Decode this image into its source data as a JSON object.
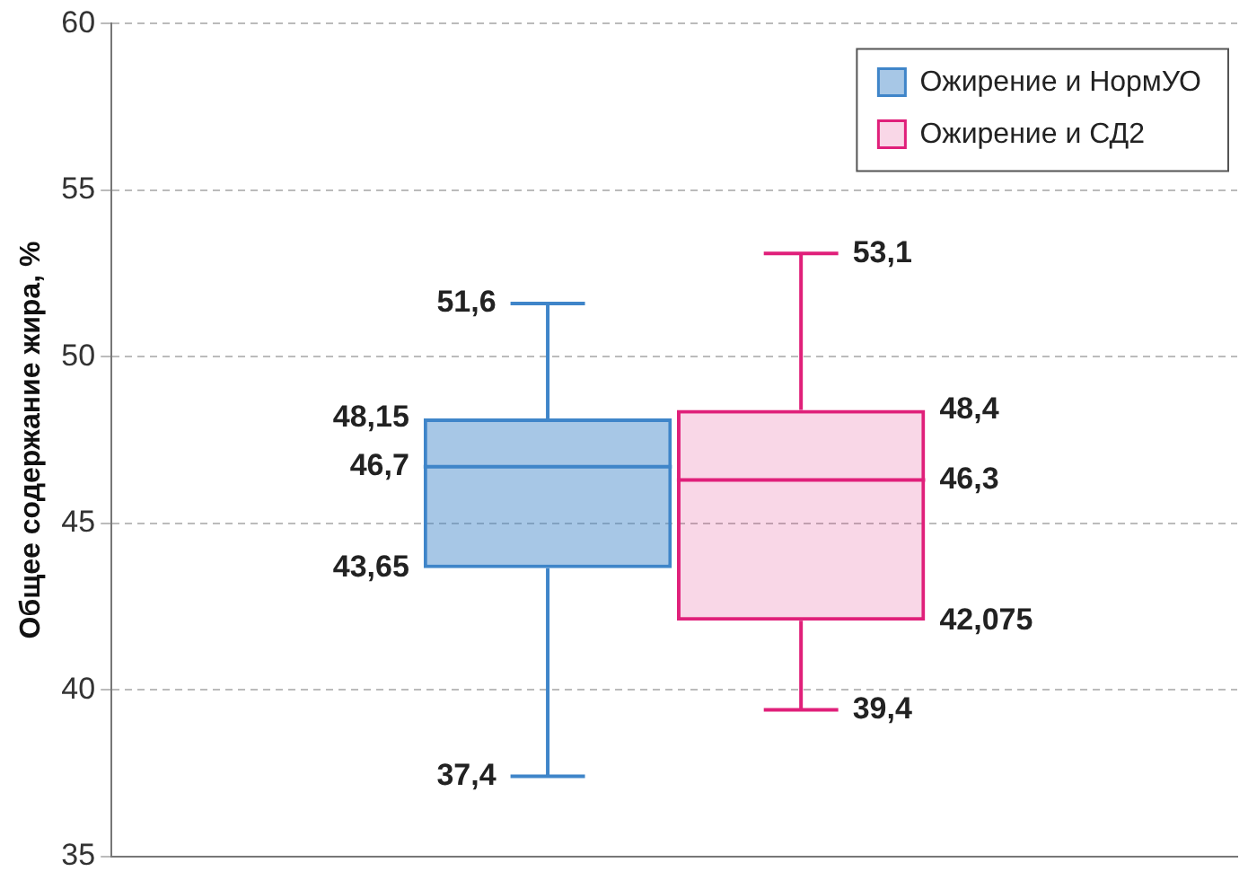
{
  "chart_data": {
    "type": "box",
    "ylabel": "Общее содержание жира, %",
    "categories": [
      null
    ],
    "series": [
      {
        "name": "Ожирение и НормУО",
        "color": "#3f85c9",
        "boxes": [
          {
            "low": 37.4,
            "q1": 43.65,
            "median": 46.7,
            "q3": 48.15,
            "high": 51.6
          }
        ],
        "value_labels": [
          [
            "37,4",
            "43,65",
            "46,7",
            "48,15",
            "51,6"
          ]
        ]
      },
      {
        "name": "Ожирение и СД2",
        "color": "#e0207a",
        "boxes": [
          {
            "low": 39.4,
            "q1": 42.075,
            "median": 46.3,
            "q3": 48.4,
            "high": 53.1
          }
        ],
        "value_labels": [
          [
            "39,4",
            "42,075",
            "46,3",
            "48,4",
            "53,1"
          ]
        ]
      }
    ],
    "ylim": [
      35,
      60
    ],
    "yticks": [
      35,
      40,
      45,
      50,
      55,
      60
    ],
    "grid": "y",
    "legend": "top right"
  }
}
